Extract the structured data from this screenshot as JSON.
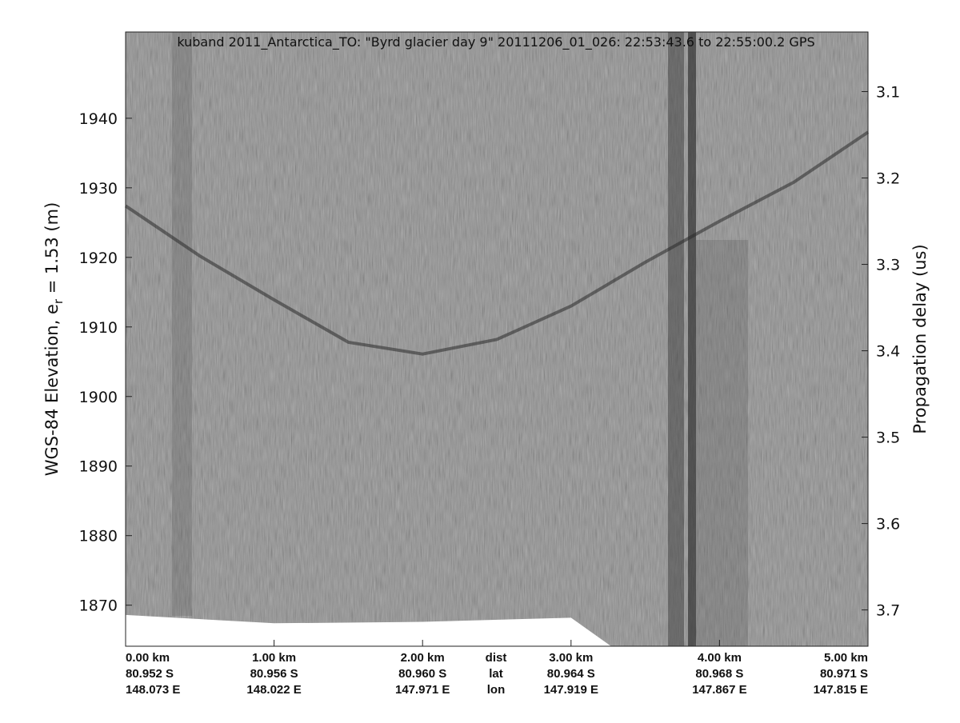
{
  "chart_data": {
    "type": "echogram",
    "title": "kuband 2011_Antarctica_TO: \"Byrd glacier day 9\"  20111206_01_026: 22:53:43.6 to 22:55:00.2 GPS",
    "y_label": "WGS-84 Elevation, e",
    "y_label_sub": "r",
    "y_label_rest": " = 1.53 (m)",
    "y2_label": "Propagation delay (us)",
    "xlim": [
      0,
      5
    ],
    "xticks": [
      {
        "value": 0,
        "label": "0.00 km"
      },
      {
        "value": 1,
        "label": "1.00 km"
      },
      {
        "value": 2,
        "label": "2.00 km"
      },
      {
        "value": 3,
        "label": "3.00 km"
      },
      {
        "value": 4,
        "label": "4.00 km"
      },
      {
        "value": 5,
        "label": "5.00 km"
      }
    ],
    "xticks_lat": [
      "80.952 S",
      "80.956 S",
      "80.960 S",
      "80.964 S",
      "80.968 S",
      "80.971 S"
    ],
    "xticks_lon": [
      "148.073 E",
      "148.022 E",
      "147.971 E",
      "147.919 E",
      "147.867 E",
      "147.815 E"
    ],
    "x_row_names": [
      "dist",
      "lat",
      "lon"
    ],
    "ylim": [
      1864.1,
      1952.4
    ],
    "yticks": [
      1870,
      1880,
      1890,
      1900,
      1910,
      1920,
      1930,
      1940
    ],
    "y2lim": [
      3.742,
      3.031
    ],
    "y2ticks": [
      3.1,
      3.2,
      3.3,
      3.4,
      3.5,
      3.6,
      3.7
    ],
    "surface": {
      "name": "surface",
      "color": "#2a2a2a",
      "x": [
        0,
        0.5,
        1,
        1.5,
        2,
        2.5,
        3,
        3.5,
        4,
        4.5,
        5
      ],
      "values": [
        1927.4,
        1920.2,
        1913.9,
        1907.8,
        1906.1,
        1908.2,
        1913,
        1919.3,
        1925.2,
        1930.8,
        1938
      ]
    },
    "data_floor": {
      "x": [
        0,
        1,
        2,
        3,
        3.27
      ],
      "values": [
        1868.6,
        1867.4,
        1867.6,
        1868.2,
        1864.1
      ]
    }
  }
}
